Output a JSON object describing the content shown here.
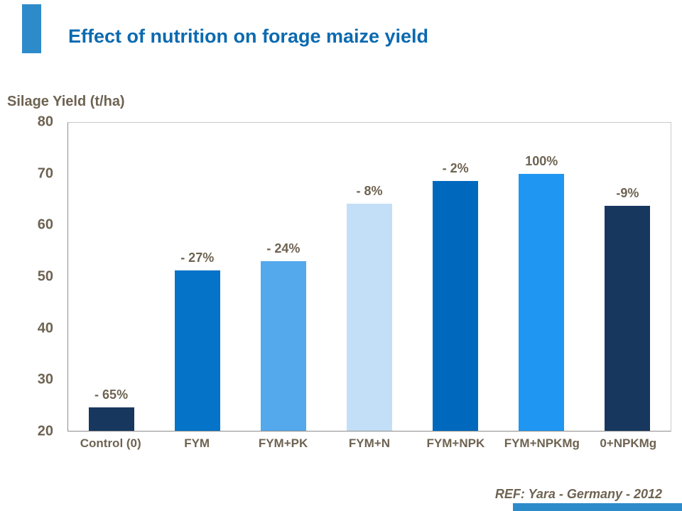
{
  "chart_data": {
    "type": "bar",
    "title": "Effect of nutrition on forage maize yield",
    "ylabel": "Silage Yield (t/ha)",
    "xlabel": "",
    "categories": [
      "Control (0)",
      "FYM",
      "FYM+PK",
      "FYM+N",
      "FYM+NPK",
      "FYM+NPKMg",
      "0+NPKMg"
    ],
    "values": [
      24.5,
      51.2,
      53,
      64.2,
      68.7,
      70,
      63.8
    ],
    "bar_labels": [
      "- 65%",
      "- 27%",
      "- 24%",
      "- 8%",
      "- 2%",
      "100%",
      "-9%"
    ],
    "bar_colors": [
      "#17375E",
      "#0473C8",
      "#54A8EC",
      "#C3DFF7",
      "#0069BE",
      "#1E96F2",
      "#17375E"
    ],
    "ylim": [
      20,
      80
    ],
    "yticks": [
      80,
      70,
      60,
      50,
      40,
      30,
      20
    ],
    "grid": false,
    "legend": "none"
  },
  "footer": {
    "text": "REF: Yara - Germany - 2012"
  },
  "colors": {
    "title": "#0B6AB0",
    "axis_text": "#6E6352",
    "accent_strip": "#2E8BCA",
    "axis_line": "#8C8C8C",
    "plot_border": "#C9C9C9"
  }
}
